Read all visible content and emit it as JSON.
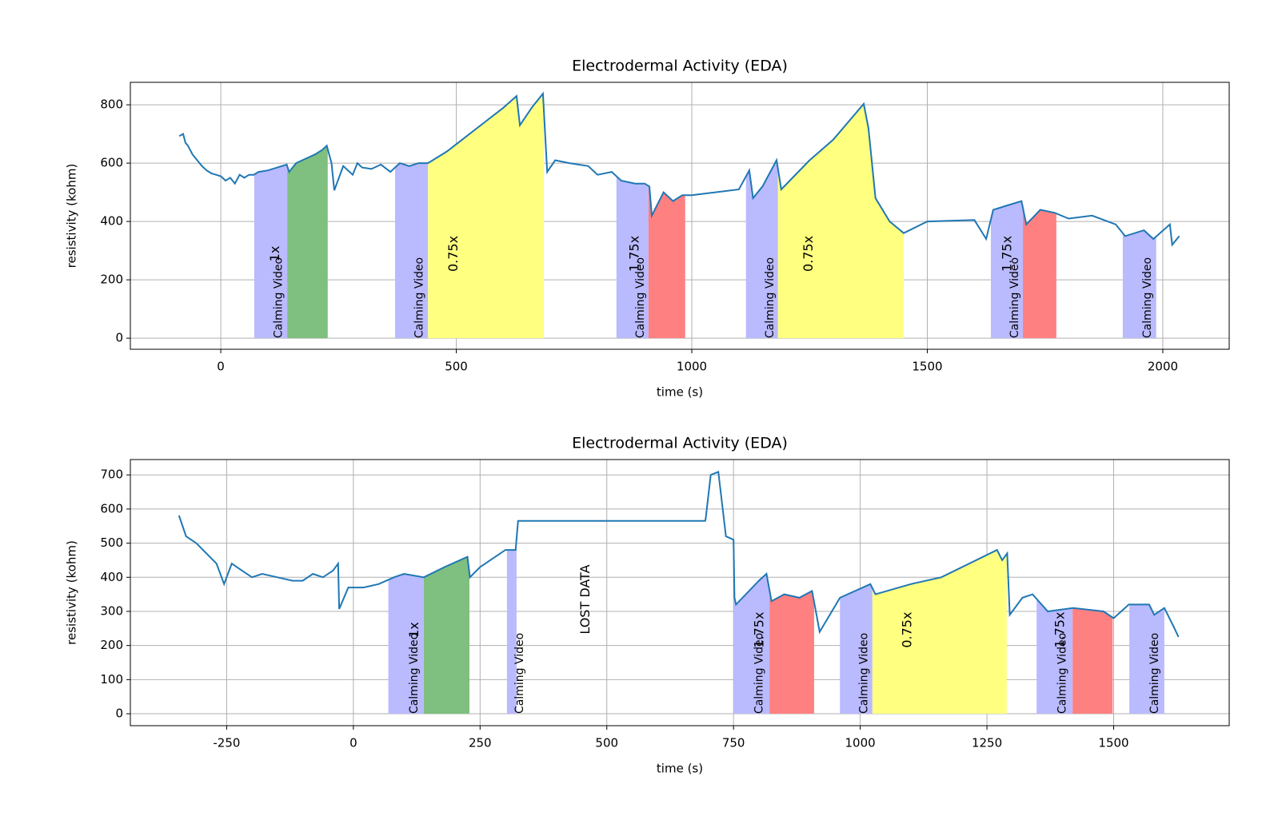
{
  "chart_data": [
    {
      "type": "line",
      "title": "Electrodermal Activity (EDA)",
      "xlabel": "time (s)",
      "ylabel": "resistivity (kohm)",
      "xlim": [
        -192,
        2141
      ],
      "ylim": [
        -38,
        877
      ],
      "xticks": [
        0,
        500,
        1000,
        1500,
        2000
      ],
      "yticks": [
        0,
        200,
        400,
        600,
        800
      ],
      "grid": true,
      "x": [
        -88,
        -80,
        -75,
        -70,
        -60,
        -50,
        -40,
        -30,
        -20,
        -10,
        0,
        10,
        20,
        30,
        40,
        50,
        60,
        70,
        80,
        100,
        120,
        140,
        145,
        160,
        180,
        200,
        215,
        225,
        235,
        241,
        260,
        280,
        290,
        300,
        320,
        340,
        360,
        380,
        400,
        420,
        440,
        480,
        520,
        560,
        600,
        628,
        635,
        660,
        684,
        693,
        710,
        740,
        780,
        800,
        830,
        850,
        880,
        900,
        910,
        915,
        940,
        960,
        980,
        1000,
        1050,
        1100,
        1122,
        1130,
        1150,
        1180,
        1190,
        1250,
        1300,
        1365,
        1375,
        1390,
        1420,
        1450,
        1500,
        1600,
        1625,
        1640,
        1670,
        1700,
        1710,
        1740,
        1770,
        1800,
        1850,
        1900,
        1920,
        1960,
        1980,
        2015,
        2020,
        2035
      ],
      "series": [
        {
          "name": "EDA",
          "color": "#1f77b4",
          "values": [
            693,
            700,
            670,
            660,
            630,
            610,
            590,
            575,
            565,
            560,
            555,
            540,
            550,
            530,
            560,
            550,
            560,
            560,
            570,
            575,
            585,
            595,
            570,
            600,
            615,
            630,
            645,
            660,
            600,
            507,
            590,
            560,
            600,
            585,
            580,
            595,
            570,
            600,
            590,
            600,
            600,
            640,
            690,
            740,
            790,
            830,
            730,
            790,
            838,
            570,
            610,
            600,
            590,
            560,
            570,
            540,
            530,
            530,
            520,
            420,
            500,
            470,
            490,
            490,
            500,
            510,
            575,
            480,
            520,
            610,
            510,
            610,
            680,
            803,
            720,
            480,
            400,
            360,
            400,
            405,
            340,
            440,
            455,
            470,
            390,
            440,
            430,
            410,
            420,
            390,
            350,
            370,
            340,
            390,
            320,
            350
          ]
        }
      ],
      "regions": [
        {
          "label": "Calming Video",
          "start": 71,
          "end": 141,
          "color": "#babaff"
        },
        {
          "label": "1x",
          "start": 141,
          "end": 227,
          "color": "#7fbf7f"
        },
        {
          "label": "Calming Video",
          "start": 370,
          "end": 440,
          "color": "#babaff"
        },
        {
          "label": "0.75x",
          "start": 440,
          "end": 686,
          "color": "#ffff80"
        },
        {
          "label": "Calming Video",
          "start": 840,
          "end": 908,
          "color": "#babaff"
        },
        {
          "label": "1.75x",
          "start": 908,
          "end": 986,
          "color": "#ff8080"
        },
        {
          "label": "Calming Video",
          "start": 1115,
          "end": 1183,
          "color": "#babaff"
        },
        {
          "label": "0.75x",
          "start": 1183,
          "end": 1450,
          "color": "#ffff80"
        },
        {
          "label": "Calming Video",
          "start": 1635,
          "end": 1703,
          "color": "#babaff"
        },
        {
          "label": "1.75x",
          "start": 1703,
          "end": 1774,
          "color": "#ff8080"
        },
        {
          "label": "Calming Video",
          "start": 1915,
          "end": 1986,
          "color": "#babaff"
        }
      ]
    },
    {
      "type": "line",
      "title": "Electrodermal Activity (EDA)",
      "xlabel": "time (s)",
      "ylabel": "resistivity (kohm)",
      "xlim": [
        -440,
        1728
      ],
      "ylim": [
        -35,
        745
      ],
      "xticks": [
        -250,
        0,
        250,
        500,
        750,
        1000,
        1250,
        1500
      ],
      "yticks": [
        0,
        100,
        200,
        300,
        400,
        500,
        600,
        700
      ],
      "grid": true,
      "x": [
        -344,
        -330,
        -310,
        -290,
        -270,
        -255,
        -240,
        -220,
        -200,
        -180,
        -150,
        -120,
        -100,
        -80,
        -60,
        -40,
        -30,
        -28,
        -10,
        20,
        50,
        80,
        100,
        139,
        180,
        225,
        230,
        250,
        300,
        320,
        325,
        694,
        695,
        705,
        720,
        735,
        750,
        752,
        755,
        800,
        815,
        825,
        850,
        880,
        905,
        920,
        960,
        1020,
        1030,
        1100,
        1160,
        1270,
        1280,
        1290,
        1295,
        1320,
        1340,
        1370,
        1420,
        1480,
        1500,
        1530,
        1570,
        1580,
        1600,
        1620,
        1628
      ],
      "series": [
        {
          "name": "EDA",
          "color": "#1f77b4",
          "values": [
            581,
            520,
            500,
            470,
            440,
            380,
            440,
            420,
            400,
            410,
            400,
            390,
            390,
            410,
            400,
            420,
            440,
            307,
            370,
            370,
            380,
            400,
            410,
            400,
            430,
            460,
            400,
            430,
            480,
            480,
            565,
            565,
            570,
            700,
            709,
            520,
            510,
            340,
            320,
            390,
            410,
            330,
            350,
            340,
            360,
            240,
            340,
            380,
            350,
            380,
            400,
            480,
            450,
            470,
            290,
            340,
            350,
            300,
            310,
            300,
            280,
            320,
            320,
            290,
            310,
            250,
            225
          ]
        }
      ],
      "regions": [
        {
          "label": "Calming Video",
          "start": 69,
          "end": 139,
          "color": "#babaff"
        },
        {
          "label": "1x",
          "start": 139,
          "end": 229,
          "color": "#7fbf7f"
        },
        {
          "label": "Calming Video",
          "start": 303,
          "end": 322,
          "color": "#babaff"
        },
        {
          "label": "Calming Video",
          "start": 750,
          "end": 821,
          "color": "#babaff"
        },
        {
          "label": "1.75x",
          "start": 821,
          "end": 909,
          "color": "#ff8080"
        },
        {
          "label": "Calming Video",
          "start": 960,
          "end": 1024,
          "color": "#babaff"
        },
        {
          "label": "0.75x",
          "start": 1024,
          "end": 1289,
          "color": "#ffff80"
        },
        {
          "label": "Calming Video",
          "start": 1348,
          "end": 1419,
          "color": "#babaff"
        },
        {
          "label": "1.75x",
          "start": 1419,
          "end": 1498,
          "color": "#ff8080"
        },
        {
          "label": "Calming Video",
          "start": 1531,
          "end": 1600,
          "color": "#babaff"
        }
      ],
      "annotations": [
        {
          "text": "LOST DATA",
          "x": 459,
          "y": 335
        }
      ]
    }
  ]
}
